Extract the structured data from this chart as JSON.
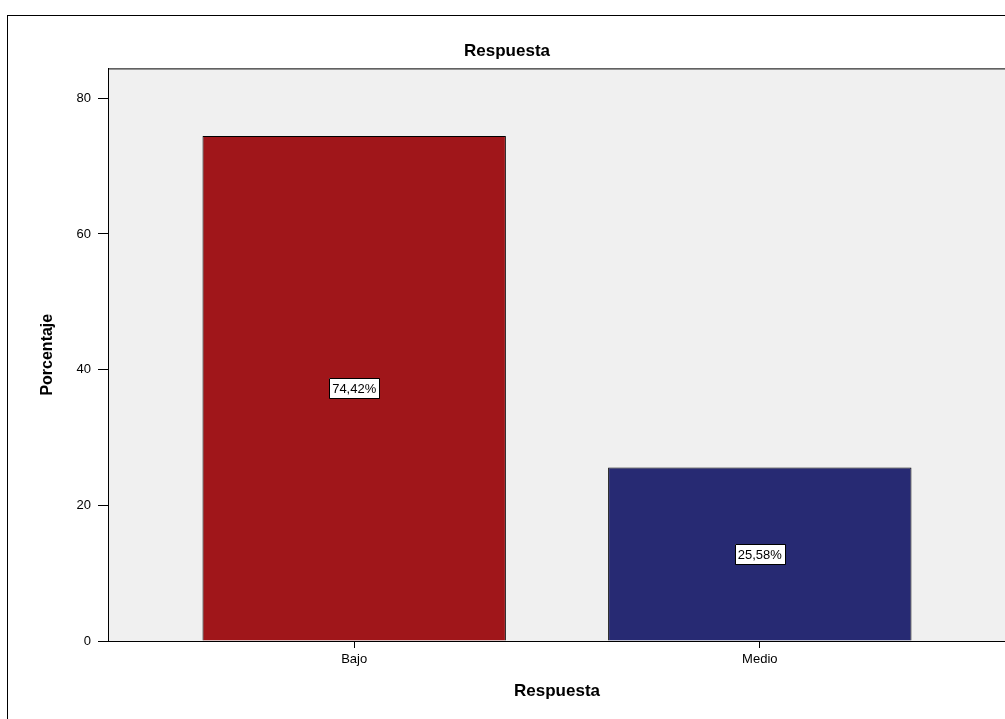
{
  "chart_data": {
    "type": "bar",
    "title": "Respuesta",
    "xlabel": "Respuesta",
    "ylabel": "Porcentaje",
    "categories": [
      "Bajo",
      "Medio"
    ],
    "values": [
      74.42,
      25.58
    ],
    "colors": [
      "#a0161a",
      "#272a73"
    ],
    "value_labels": [
      "74,42%",
      "25,58%"
    ],
    "ylim": [
      0,
      84.4
    ],
    "yticks": [
      0,
      20,
      40,
      60,
      80
    ]
  }
}
